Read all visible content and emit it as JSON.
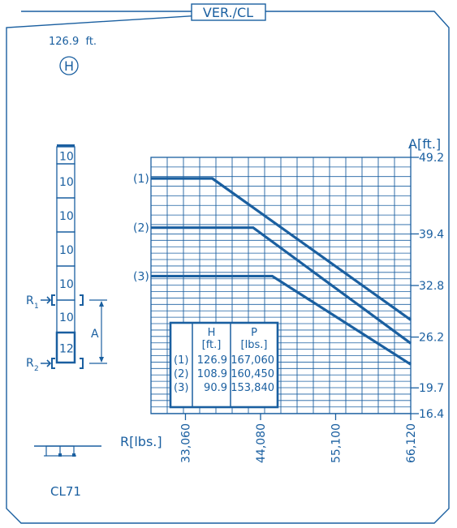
{
  "header": {
    "title": "VER./CL",
    "height_label": "126.9  ft.",
    "height_symbol": "H",
    "model": "CL71"
  },
  "mast": {
    "sections": [
      "10",
      "10",
      "10",
      "10",
      "10",
      "10",
      "12"
    ],
    "anchor_upper": "R",
    "anchor_upper_sub": "1",
    "anchor_lower": "R",
    "anchor_lower_sub": "2",
    "distance_label": "A"
  },
  "colors": {
    "line": "#1a5fa0",
    "background": "#ffffff"
  },
  "chart_data": {
    "type": "line",
    "xlabel": "R[lbs.]",
    "ylabel": "A[ft.]",
    "x_ticks": [
      33060,
      44080,
      55100,
      66120
    ],
    "x_tick_labels": [
      "33,060",
      "44,080",
      "55,100",
      "66,120"
    ],
    "y_ticks": [
      16.4,
      19.7,
      26.2,
      32.8,
      39.4,
      49.2
    ],
    "y_tick_labels": [
      "16.4",
      "19.7",
      "26.2",
      "32.8",
      "39.4",
      "49.2"
    ],
    "xlim": [
      28000,
      66120
    ],
    "ylim": [
      16.4,
      49.2
    ],
    "grid": true,
    "series": [
      {
        "name": "(1)",
        "x": [
          28000,
          37000,
          66120
        ],
        "y": [
          46.5,
          46.5,
          28.4
        ]
      },
      {
        "name": "(2)",
        "x": [
          28000,
          43000,
          66120
        ],
        "y": [
          40.2,
          40.2,
          25.4
        ]
      },
      {
        "name": "(3)",
        "x": [
          28000,
          45800,
          66120
        ],
        "y": [
          34.0,
          34.0,
          22.7
        ]
      }
    ],
    "table": {
      "headers": [
        "H",
        "P"
      ],
      "units": [
        "[ft.]",
        "[lbs.]"
      ],
      "rows": [
        {
          "label": "(1)",
          "H": "126.9",
          "P": "167,060"
        },
        {
          "label": "(2)",
          "H": "108.9",
          "P": "160,450"
        },
        {
          "label": "(3)",
          "H": "90.9",
          "P": "153,840"
        }
      ]
    }
  }
}
